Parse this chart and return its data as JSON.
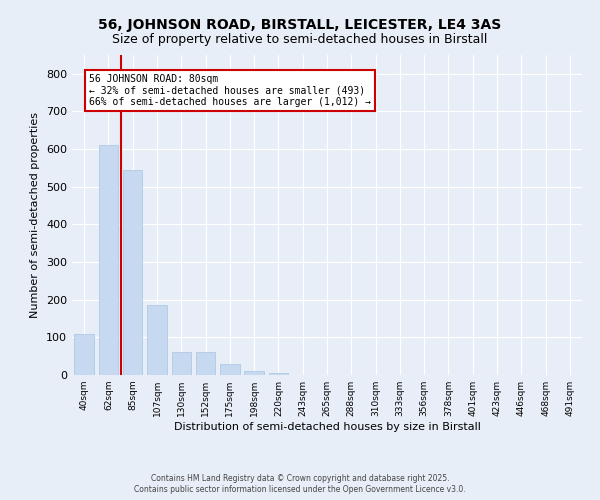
{
  "title": "56, JOHNSON ROAD, BIRSTALL, LEICESTER, LE4 3AS",
  "subtitle": "Size of property relative to semi-detached houses in Birstall",
  "xlabel": "Distribution of semi-detached houses by size in Birstall",
  "ylabel": "Number of semi-detached properties",
  "categories": [
    "40sqm",
    "62sqm",
    "85sqm",
    "107sqm",
    "130sqm",
    "152sqm",
    "175sqm",
    "198sqm",
    "220sqm",
    "243sqm",
    "265sqm",
    "288sqm",
    "310sqm",
    "333sqm",
    "356sqm",
    "378sqm",
    "401sqm",
    "423sqm",
    "446sqm",
    "468sqm",
    "491sqm"
  ],
  "values": [
    110,
    610,
    545,
    185,
    60,
    60,
    30,
    10,
    5,
    0,
    0,
    0,
    0,
    0,
    0,
    0,
    0,
    0,
    0,
    0,
    0
  ],
  "bar_color": "#c6d9f0",
  "bar_edge_color": "#a8c4e0",
  "vline_x_index": 2,
  "vline_color": "#cc0000",
  "annotation_title": "56 JOHNSON ROAD: 80sqm",
  "annotation_line1": "← 32% of semi-detached houses are smaller (493)",
  "annotation_line2": "66% of semi-detached houses are larger (1,012) →",
  "annotation_box_color": "#ffffff",
  "annotation_box_edge_color": "#cc0000",
  "ylim": [
    0,
    850
  ],
  "yticks": [
    0,
    100,
    200,
    300,
    400,
    500,
    600,
    700,
    800
  ],
  "footer_line1": "Contains HM Land Registry data © Crown copyright and database right 2025.",
  "footer_line2": "Contains public sector information licensed under the Open Government Licence v3.0.",
  "bg_color": "#e8eef7",
  "plot_bg_color": "#e8eef7",
  "title_fontsize": 10,
  "subtitle_fontsize": 9
}
